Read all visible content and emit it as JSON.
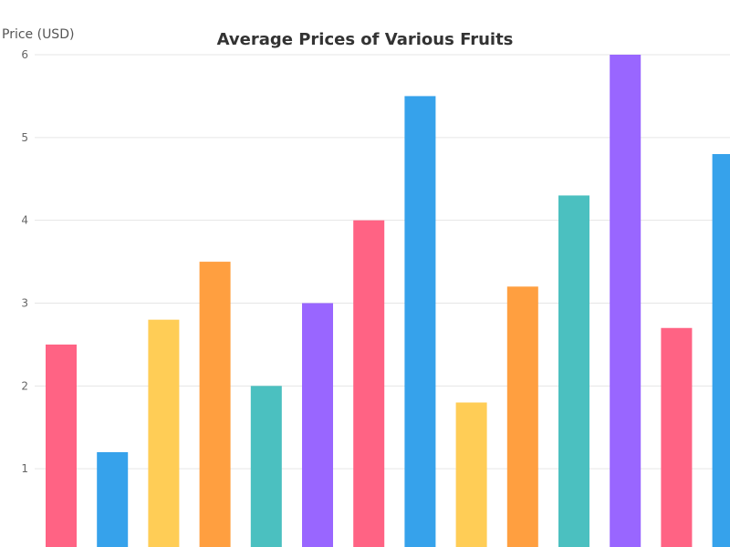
{
  "chart_data": {
    "type": "bar",
    "title": "Average Prices of Various Fruits",
    "xlabel": "",
    "ylabel": "Price (USD)",
    "ylim": [
      0,
      6
    ],
    "yticks": [
      1,
      2,
      3,
      4,
      5,
      6
    ],
    "grid": true,
    "values": [
      2.5,
      1.2,
      2.8,
      3.5,
      2.0,
      3.0,
      4.0,
      5.5,
      1.8,
      3.2,
      4.3,
      6.0,
      2.7,
      4.8
    ],
    "colors": [
      "#ff6384",
      "#36a2eb",
      "#ffcd56",
      "#ff9f40",
      "#4bc0c0",
      "#9966ff",
      "#ff6384",
      "#36a2eb",
      "#ffcd56",
      "#ff9f40",
      "#4bc0c0",
      "#9966ff",
      "#ff6384",
      "#36a2eb"
    ]
  }
}
